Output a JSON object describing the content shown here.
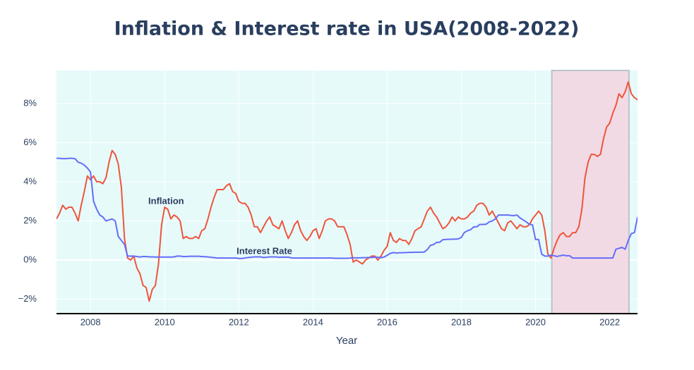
{
  "chart_data": {
    "type": "line",
    "title": "Inflation & Interest rate in USA(2008-2022)",
    "x_label": "Year",
    "x": [
      2007.083,
      2007.167,
      2007.25,
      2007.333,
      2007.417,
      2007.5,
      2007.583,
      2007.667,
      2007.75,
      2007.833,
      2007.917,
      2008,
      2008.083,
      2008.167,
      2008.25,
      2008.333,
      2008.417,
      2008.5,
      2008.583,
      2008.667,
      2008.75,
      2008.833,
      2008.917,
      2009,
      2009.083,
      2009.167,
      2009.25,
      2009.333,
      2009.417,
      2009.5,
      2009.583,
      2009.667,
      2009.75,
      2009.833,
      2009.917,
      2010,
      2010.083,
      2010.167,
      2010.25,
      2010.333,
      2010.417,
      2010.5,
      2010.583,
      2010.667,
      2010.75,
      2010.833,
      2010.917,
      2011,
      2011.083,
      2011.167,
      2011.25,
      2011.333,
      2011.417,
      2011.5,
      2011.583,
      2011.667,
      2011.75,
      2011.833,
      2011.917,
      2012,
      2012.083,
      2012.167,
      2012.25,
      2012.333,
      2012.417,
      2012.5,
      2012.583,
      2012.667,
      2012.75,
      2012.833,
      2012.917,
      2013,
      2013.083,
      2013.167,
      2013.25,
      2013.333,
      2013.417,
      2013.5,
      2013.583,
      2013.667,
      2013.75,
      2013.833,
      2013.917,
      2014,
      2014.083,
      2014.167,
      2014.25,
      2014.333,
      2014.417,
      2014.5,
      2014.583,
      2014.667,
      2014.75,
      2014.833,
      2014.917,
      2015,
      2015.083,
      2015.167,
      2015.25,
      2015.333,
      2015.417,
      2015.5,
      2015.583,
      2015.667,
      2015.75,
      2015.833,
      2015.917,
      2016,
      2016.083,
      2016.167,
      2016.25,
      2016.333,
      2016.417,
      2016.5,
      2016.583,
      2016.667,
      2016.75,
      2016.833,
      2016.917,
      2017,
      2017.083,
      2017.167,
      2017.25,
      2017.333,
      2017.417,
      2017.5,
      2017.583,
      2017.667,
      2017.75,
      2017.833,
      2017.917,
      2018,
      2018.083,
      2018.167,
      2018.25,
      2018.333,
      2018.417,
      2018.5,
      2018.583,
      2018.667,
      2018.75,
      2018.833,
      2018.917,
      2019,
      2019.083,
      2019.167,
      2019.25,
      2019.333,
      2019.417,
      2019.5,
      2019.583,
      2019.667,
      2019.75,
      2019.833,
      2019.917,
      2020,
      2020.083,
      2020.167,
      2020.25,
      2020.333,
      2020.417,
      2020.5,
      2020.583,
      2020.667,
      2020.75,
      2020.833,
      2020.917,
      2021,
      2021.083,
      2021.167,
      2021.25,
      2021.333,
      2021.417,
      2021.5,
      2021.583,
      2021.667,
      2021.75,
      2021.833,
      2021.917,
      2022,
      2022.083,
      2022.167,
      2022.25,
      2022.333,
      2022.417,
      2022.5,
      2022.583,
      2022.667,
      2022.75
    ],
    "series": [
      {
        "color": "#EF553B",
        "values": [
          2.1,
          2.4,
          2.8,
          2.6,
          2.7,
          2.7,
          2.4,
          2.0,
          2.8,
          3.5,
          4.3,
          4.1,
          4.3,
          4.0,
          4.0,
          3.9,
          4.2,
          5.0,
          5.6,
          5.4,
          4.9,
          3.7,
          1.1,
          0.1,
          0.0,
          0.2,
          -0.4,
          -0.7,
          -1.3,
          -1.4,
          -2.1,
          -1.5,
          -1.3,
          -0.2,
          1.8,
          2.7,
          2.6,
          2.1,
          2.3,
          2.2,
          2.0,
          1.1,
          1.2,
          1.1,
          1.1,
          1.2,
          1.1,
          1.5,
          1.6,
          2.1,
          2.7,
          3.2,
          3.6,
          3.6,
          3.6,
          3.8,
          3.9,
          3.5,
          3.4,
          3.0,
          2.9,
          2.9,
          2.7,
          2.3,
          1.7,
          1.7,
          1.4,
          1.7,
          2.0,
          2.2,
          1.8,
          1.7,
          1.6,
          2.0,
          1.5,
          1.1,
          1.4,
          1.8,
          2.0,
          1.5,
          1.2,
          1.0,
          1.2,
          1.5,
          1.6,
          1.1,
          1.5,
          2.0,
          2.1,
          2.1,
          2.0,
          1.7,
          1.7,
          1.7,
          1.3,
          0.8,
          -0.1,
          0.0,
          -0.1,
          -0.2,
          0.0,
          0.1,
          0.2,
          0.2,
          0.0,
          0.2,
          0.5,
          0.7,
          1.4,
          1.0,
          0.9,
          1.1,
          1.0,
          1.0,
          0.8,
          1.1,
          1.5,
          1.6,
          1.7,
          2.1,
          2.5,
          2.7,
          2.4,
          2.2,
          1.9,
          1.6,
          1.7,
          1.9,
          2.2,
          2.0,
          2.2,
          2.1,
          2.1,
          2.2,
          2.4,
          2.5,
          2.8,
          2.9,
          2.9,
          2.7,
          2.3,
          2.5,
          2.2,
          1.9,
          1.6,
          1.5,
          1.9,
          2.0,
          1.8,
          1.6,
          1.8,
          1.7,
          1.7,
          1.8,
          2.1,
          2.3,
          2.5,
          2.3,
          1.5,
          0.3,
          0.1,
          0.6,
          1.0,
          1.3,
          1.4,
          1.2,
          1.2,
          1.4,
          1.4,
          1.7,
          2.6,
          4.2,
          5.0,
          5.4,
          5.4,
          5.3,
          5.4,
          6.2,
          6.8,
          7.0,
          7.5,
          7.9,
          8.5,
          8.3,
          8.6,
          9.1,
          8.5,
          8.3,
          8.2
        ]
      },
      {
        "color": "#636EFA",
        "values": [
          5.2,
          5.2,
          5.18,
          5.18,
          5.2,
          5.2,
          5.18,
          5.0,
          4.95,
          4.85,
          4.7,
          4.5,
          3.0,
          2.6,
          2.3,
          2.2,
          2.0,
          2.05,
          2.1,
          2.0,
          1.2,
          1.0,
          0.8,
          0.2,
          0.2,
          0.2,
          0.18,
          0.15,
          0.18,
          0.18,
          0.16,
          0.16,
          0.15,
          0.15,
          0.15,
          0.15,
          0.15,
          0.15,
          0.16,
          0.2,
          0.2,
          0.18,
          0.18,
          0.19,
          0.19,
          0.19,
          0.19,
          0.18,
          0.17,
          0.16,
          0.14,
          0.12,
          0.1,
          0.1,
          0.1,
          0.1,
          0.1,
          0.1,
          0.1,
          0.08,
          0.08,
          0.1,
          0.13,
          0.14,
          0.16,
          0.16,
          0.16,
          0.13,
          0.14,
          0.16,
          0.16,
          0.16,
          0.14,
          0.15,
          0.14,
          0.15,
          0.11,
          0.1,
          0.1,
          0.1,
          0.1,
          0.1,
          0.1,
          0.1,
          0.1,
          0.1,
          0.1,
          0.1,
          0.1,
          0.1,
          0.09,
          0.09,
          0.09,
          0.09,
          0.09,
          0.1,
          0.11,
          0.11,
          0.11,
          0.12,
          0.12,
          0.13,
          0.13,
          0.14,
          0.14,
          0.12,
          0.15,
          0.24,
          0.34,
          0.38,
          0.36,
          0.37,
          0.37,
          0.38,
          0.39,
          0.39,
          0.4,
          0.4,
          0.4,
          0.41,
          0.54,
          0.75,
          0.79,
          0.9,
          0.91,
          1.04,
          1.05,
          1.06,
          1.06,
          1.07,
          1.08,
          1.16,
          1.41,
          1.5,
          1.55,
          1.69,
          1.7,
          1.82,
          1.82,
          1.83,
          1.95,
          2.0,
          2.1,
          2.3,
          2.3,
          2.3,
          2.3,
          2.28,
          2.27,
          2.3,
          2.15,
          2.05,
          1.95,
          1.83,
          1.8,
          1.05,
          1.05,
          0.3,
          0.2,
          0.2,
          0.25,
          0.22,
          0.18,
          0.22,
          0.25,
          0.22,
          0.22,
          0.1,
          0.1,
          0.1,
          0.1,
          0.1,
          0.1,
          0.1,
          0.1,
          0.1,
          0.1,
          0.1,
          0.1,
          0.1,
          0.1,
          0.55,
          0.6,
          0.65,
          0.55,
          1.0,
          1.35,
          1.4,
          2.2
        ]
      }
    ],
    "annotations": [
      {
        "text": "Inflation",
        "x": 2010.04,
        "y": 2.99
      },
      {
        "text": "Interest Rate",
        "x": 2012.69,
        "y": 0.43
      }
    ],
    "highlight": {
      "x0": 2020.44,
      "x1": 2022.52,
      "color": "#f3d3df"
    },
    "plot_bgcolor": "#e6fafa",
    "xlim": [
      2007.083,
      2022.75
    ],
    "xticks": [
      2008,
      2010,
      2012,
      2014,
      2016,
      2018,
      2020,
      2022
    ],
    "ylim": [
      -2.74,
      9.69
    ],
    "yticks": [
      {
        "value": -2,
        "label": "−2%"
      },
      {
        "value": 0,
        "label": "0%"
      },
      {
        "value": 2,
        "label": "2%"
      },
      {
        "value": 4,
        "label": "4%"
      },
      {
        "value": 6,
        "label": "6%"
      },
      {
        "value": 8,
        "label": "8%"
      }
    ],
    "grid": true
  }
}
